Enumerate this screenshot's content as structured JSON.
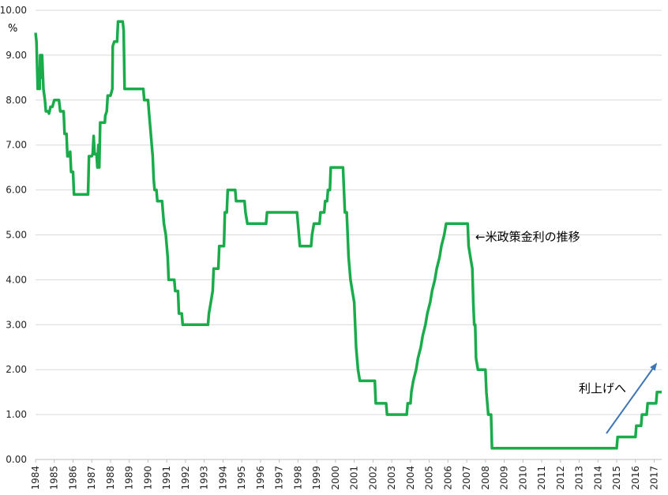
{
  "chart_data": {
    "type": "line",
    "ylabel": "%",
    "ylim": [
      0,
      10
    ],
    "yticks": [
      "0.00",
      "1.00",
      "2.00",
      "3.00",
      "4.00",
      "5.00",
      "6.00",
      "7.00",
      "8.00",
      "9.00",
      "10.00"
    ],
    "xlim": [
      1984,
      2017.4
    ],
    "xticks": [
      "1984",
      "1985",
      "1986",
      "1987",
      "1988",
      "1989",
      "1990",
      "1991",
      "1992",
      "1993",
      "1994",
      "1995",
      "1996",
      "1997",
      "1998",
      "1999",
      "2000",
      "2001",
      "2002",
      "2003",
      "2004",
      "2005",
      "2006",
      "2007",
      "2008",
      "2009",
      "2010",
      "2011",
      "2012",
      "2013",
      "2014",
      "2015",
      "2016",
      "2017"
    ],
    "grid": true,
    "line_color": "#1aab4a",
    "arrow_color": "#3f75b5",
    "annotations": {
      "series_label": "←米政策金利の推移",
      "trend_label": "利上げへ"
    },
    "series": [
      {
        "points": [
          [
            1984.0,
            9.5
          ],
          [
            1984.05,
            9.3
          ],
          [
            1984.12,
            8.25
          ],
          [
            1984.17,
            8.7
          ],
          [
            1984.22,
            8.25
          ],
          [
            1984.25,
            9.0
          ],
          [
            1984.3,
            8.5
          ],
          [
            1984.35,
            9.0
          ],
          [
            1984.42,
            8.25
          ],
          [
            1984.5,
            8.0
          ],
          [
            1984.55,
            7.75
          ],
          [
            1984.68,
            7.75
          ],
          [
            1984.72,
            7.7
          ],
          [
            1984.8,
            7.85
          ],
          [
            1984.9,
            7.85
          ],
          [
            1985.0,
            8.0
          ],
          [
            1985.25,
            8.0
          ],
          [
            1985.32,
            7.75
          ],
          [
            1985.5,
            7.75
          ],
          [
            1985.55,
            7.25
          ],
          [
            1985.65,
            7.25
          ],
          [
            1985.7,
            6.75
          ],
          [
            1985.8,
            6.75
          ],
          [
            1985.85,
            6.85
          ],
          [
            1985.9,
            6.4
          ],
          [
            1986.0,
            6.4
          ],
          [
            1986.05,
            5.9
          ],
          [
            1986.8,
            5.9
          ],
          [
            1986.85,
            6.75
          ],
          [
            1987.0,
            6.75
          ],
          [
            1987.05,
            6.8
          ],
          [
            1987.1,
            7.2
          ],
          [
            1987.15,
            6.8
          ],
          [
            1987.25,
            6.8
          ],
          [
            1987.3,
            6.5
          ],
          [
            1987.35,
            7.0
          ],
          [
            1987.4,
            6.5
          ],
          [
            1987.45,
            7.5
          ],
          [
            1987.7,
            7.5
          ],
          [
            1987.72,
            7.65
          ],
          [
            1987.8,
            7.75
          ],
          [
            1987.85,
            8.1
          ],
          [
            1988.0,
            8.1
          ],
          [
            1988.1,
            8.25
          ],
          [
            1988.12,
            9.2
          ],
          [
            1988.2,
            9.3
          ],
          [
            1988.35,
            9.3
          ],
          [
            1988.4,
            9.75
          ],
          [
            1988.65,
            9.75
          ],
          [
            1988.7,
            9.55
          ],
          [
            1988.75,
            8.25
          ],
          [
            1989.75,
            8.25
          ],
          [
            1989.8,
            8.0
          ],
          [
            1990.0,
            8.0
          ],
          [
            1990.05,
            7.75
          ],
          [
            1990.1,
            7.5
          ],
          [
            1990.15,
            7.25
          ],
          [
            1990.2,
            7.0
          ],
          [
            1990.25,
            6.75
          ],
          [
            1990.3,
            6.25
          ],
          [
            1990.35,
            6.0
          ],
          [
            1990.45,
            6.0
          ],
          [
            1990.5,
            5.75
          ],
          [
            1990.75,
            5.75
          ],
          [
            1990.8,
            5.5
          ],
          [
            1990.85,
            5.25
          ],
          [
            1990.95,
            5.0
          ],
          [
            1991.0,
            4.75
          ],
          [
            1991.05,
            4.5
          ],
          [
            1991.1,
            4.0
          ],
          [
            1991.4,
            4.0
          ],
          [
            1991.45,
            3.75
          ],
          [
            1991.6,
            3.75
          ],
          [
            1991.65,
            3.25
          ],
          [
            1991.8,
            3.25
          ],
          [
            1991.85,
            3.0
          ],
          [
            1993.2,
            3.0
          ],
          [
            1993.25,
            3.25
          ],
          [
            1993.35,
            3.5
          ],
          [
            1993.45,
            3.75
          ],
          [
            1993.5,
            4.25
          ],
          [
            1993.75,
            4.25
          ],
          [
            1993.8,
            4.75
          ],
          [
            1994.05,
            4.75
          ],
          [
            1994.1,
            5.5
          ],
          [
            1994.2,
            5.5
          ],
          [
            1994.25,
            6.0
          ],
          [
            1994.65,
            6.0
          ],
          [
            1994.7,
            5.75
          ],
          [
            1995.15,
            5.75
          ],
          [
            1995.2,
            5.5
          ],
          [
            1995.3,
            5.25
          ],
          [
            1996.3,
            5.25
          ],
          [
            1996.35,
            5.5
          ],
          [
            1997.95,
            5.5
          ],
          [
            1998.0,
            5.25
          ],
          [
            1998.05,
            5.0
          ],
          [
            1998.1,
            4.75
          ],
          [
            1998.7,
            4.75
          ],
          [
            1998.75,
            5.0
          ],
          [
            1998.85,
            5.25
          ],
          [
            1999.15,
            5.25
          ],
          [
            1999.2,
            5.5
          ],
          [
            1999.4,
            5.5
          ],
          [
            1999.45,
            5.75
          ],
          [
            1999.55,
            5.75
          ],
          [
            1999.6,
            6.0
          ],
          [
            1999.7,
            6.0
          ],
          [
            1999.75,
            6.5
          ],
          [
            2000.4,
            6.5
          ],
          [
            2000.45,
            6.0
          ],
          [
            2000.5,
            5.5
          ],
          [
            2000.6,
            5.5
          ],
          [
            2000.65,
            5.0
          ],
          [
            2000.7,
            4.5
          ],
          [
            2000.8,
            4.0
          ],
          [
            2000.9,
            3.75
          ],
          [
            2001.0,
            3.5
          ],
          [
            2001.05,
            3.0
          ],
          [
            2001.1,
            2.5
          ],
          [
            2001.2,
            2.0
          ],
          [
            2001.3,
            1.75
          ],
          [
            2002.1,
            1.75
          ],
          [
            2002.15,
            1.25
          ],
          [
            2002.7,
            1.25
          ],
          [
            2002.75,
            1.0
          ],
          [
            2003.8,
            1.0
          ],
          [
            2003.85,
            1.25
          ],
          [
            2004.0,
            1.25
          ],
          [
            2004.05,
            1.5
          ],
          [
            2004.15,
            1.75
          ],
          [
            2004.3,
            2.0
          ],
          [
            2004.4,
            2.25
          ],
          [
            2004.55,
            2.5
          ],
          [
            2004.65,
            2.75
          ],
          [
            2004.8,
            3.0
          ],
          [
            2004.9,
            3.25
          ],
          [
            2005.05,
            3.5
          ],
          [
            2005.15,
            3.75
          ],
          [
            2005.3,
            4.0
          ],
          [
            2005.4,
            4.25
          ],
          [
            2005.55,
            4.5
          ],
          [
            2005.65,
            4.75
          ],
          [
            2005.8,
            5.0
          ],
          [
            2005.9,
            5.25
          ],
          [
            2007.05,
            5.25
          ],
          [
            2007.1,
            4.75
          ],
          [
            2007.2,
            4.5
          ],
          [
            2007.3,
            4.25
          ],
          [
            2007.35,
            3.5
          ],
          [
            2007.4,
            3.0
          ],
          [
            2007.45,
            3.0
          ],
          [
            2007.5,
            2.25
          ],
          [
            2007.6,
            2.0
          ],
          [
            2008.0,
            2.0
          ],
          [
            2008.05,
            1.5
          ],
          [
            2008.15,
            1.0
          ],
          [
            2008.3,
            1.0
          ],
          [
            2008.35,
            0.25
          ],
          [
            2015.0,
            0.25
          ],
          [
            2015.05,
            0.5
          ],
          [
            2016.0,
            0.5
          ],
          [
            2016.05,
            0.75
          ],
          [
            2016.3,
            0.75
          ],
          [
            2016.35,
            1.0
          ],
          [
            2016.6,
            1.0
          ],
          [
            2016.65,
            1.25
          ],
          [
            2017.1,
            1.25
          ],
          [
            2017.15,
            1.5
          ],
          [
            2017.4,
            1.5
          ]
        ]
      }
    ]
  }
}
